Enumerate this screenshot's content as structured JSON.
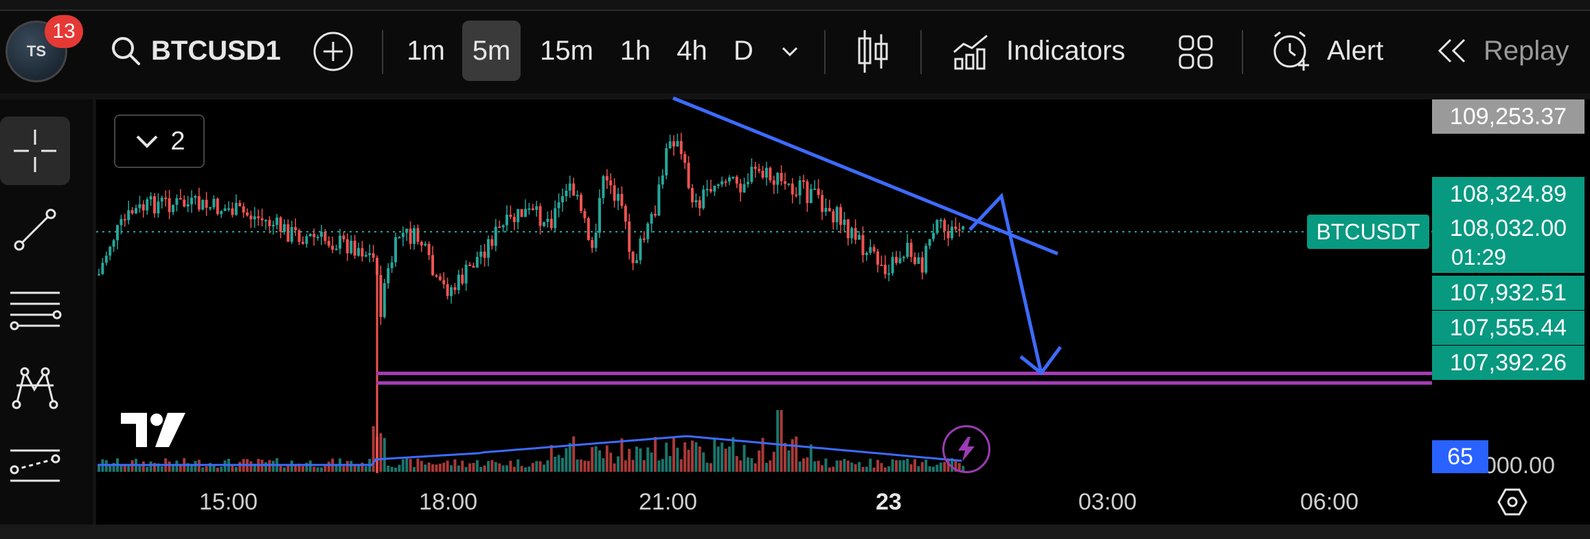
{
  "app": {
    "avatar_initials": "TS",
    "notification_count": "13",
    "symbol": "BTCUSD1",
    "icons": {
      "search": "search-icon",
      "add": "add-circle-icon",
      "dropdown": "chevron-down-icon",
      "candles": "candlestick-icon",
      "indicators": "indicators-icon",
      "layout": "grid-layout-icon",
      "alert": "alarm-plus-icon",
      "replay": "rewind-icon",
      "settings": "hexagon-settings-icon",
      "crosshair": "crosshair-icon",
      "trendline": "trendline-icon",
      "fib": "fibonacci-icon",
      "pattern": "pattern-icon",
      "forecast": "forecast-icon",
      "lightning": "lightning-icon"
    }
  },
  "toolbar": {
    "timeframes": [
      "1m",
      "5m",
      "15m",
      "1h",
      "4h",
      "D"
    ],
    "active_timeframe": "5m",
    "indicators_label": "Indicators",
    "alert_label": "Alert",
    "replay_label": "Replay"
  },
  "chart": {
    "collapse_count": "2",
    "symbol_label": "BTCUSDT",
    "countdown": "01:29",
    "prices": {
      "top": "109,253.37",
      "p2": "108,324.89",
      "current": "108,032.00",
      "p4": "107,932.51",
      "p5": "107,555.44",
      "p6": "107,392.26"
    },
    "volume_label": "65",
    "volume_axis": "000.00",
    "time_labels": [
      "15:00",
      "18:00",
      "21:00",
      "23",
      "03:00",
      "06:00"
    ],
    "colors": {
      "up": "#26a69a",
      "down": "#ef5350",
      "trend": "#3d6bff",
      "support": "#a53bb6",
      "current_tag": "#089981"
    }
  }
}
